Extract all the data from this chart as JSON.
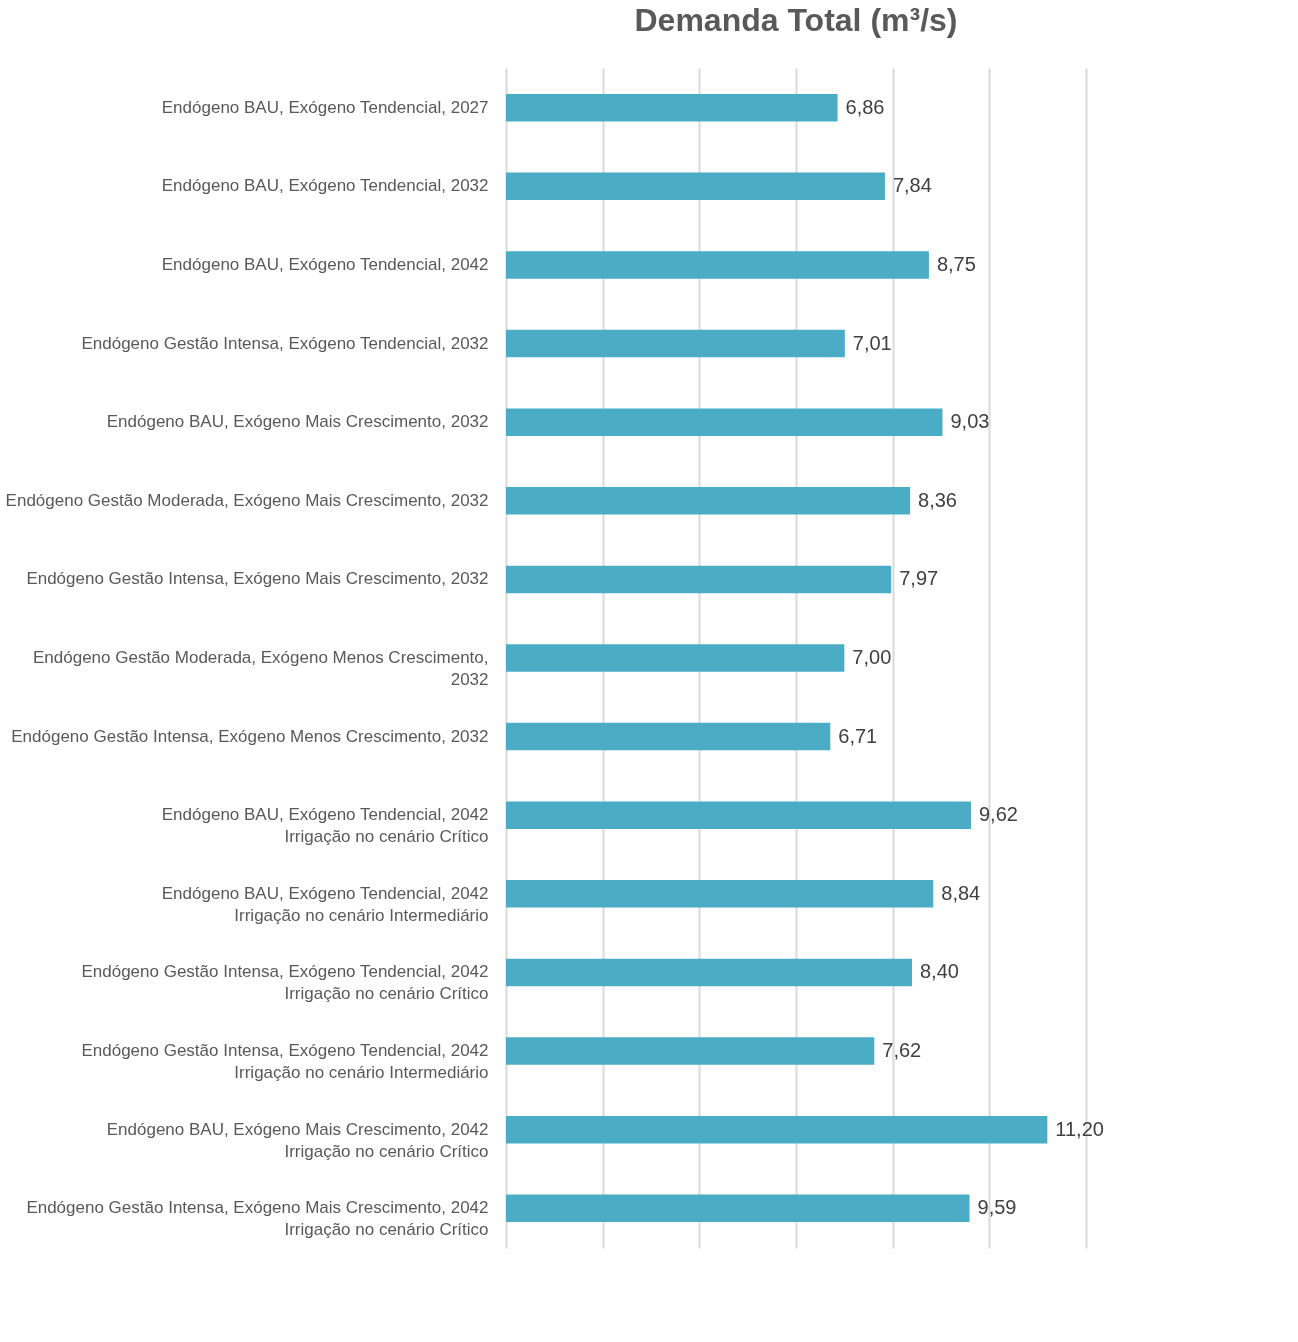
{
  "chart_data": {
    "type": "bar",
    "orientation": "horizontal",
    "title": "Demanda Total (m³/s)",
    "categories": [
      "Endógeno BAU, Exógeno Tendencial, 2027",
      "Endógeno BAU, Exógeno Tendencial, 2032",
      "Endógeno BAU, Exógeno Tendencial, 2042",
      "Endógeno Gestão Intensa, Exógeno Tendencial, 2032",
      "Endógeno BAU, Exógeno Mais Crescimento, 2032",
      "Endógeno Gestão Moderada, Exógeno Mais Crescimento, 2032",
      "Endógeno Gestão Intensa, Exógeno Mais Crescimento, 2032",
      "Endógeno Gestão Moderada, Exógeno Menos Crescimento,\n2032",
      "Endógeno Gestão Intensa, Exógeno Menos Crescimento, 2032",
      "Endógeno BAU, Exógeno Tendencial, 2042\nIrrigação no cenário Crítico",
      "Endógeno BAU, Exógeno Tendencial, 2042\nIrrigação no cenário Intermediário",
      "Endógeno Gestão Intensa, Exógeno Tendencial, 2042\nIrrigação no cenário Crítico",
      "Endógeno Gestão Intensa, Exógeno Tendencial, 2042\nIrrigação no cenário Intermediário",
      "Endógeno BAU, Exógeno Mais Crescimento, 2042\nIrrigação no cenário Crítico",
      "Endógeno Gestão Intensa, Exógeno Mais Crescimento, 2042\nIrrigação no cenário Crítico"
    ],
    "values": [
      6.86,
      7.84,
      8.75,
      7.01,
      9.03,
      8.36,
      7.97,
      7.0,
      6.71,
      9.62,
      8.84,
      8.4,
      7.62,
      11.2,
      9.59
    ],
    "value_labels": [
      "6,86",
      "7,84",
      "8,75",
      "7,01",
      "9,03",
      "8,36",
      "7,97",
      "7,00",
      "6,71",
      "9,62",
      "8,84",
      "8,40",
      "7,62",
      "11,20",
      "9,59"
    ],
    "color": "#4bacc6",
    "xlim": [
      0,
      12
    ],
    "xticks": [
      {
        "value": 0,
        "label": null
      },
      {
        "value": 2,
        "label": null
      },
      {
        "value": 4,
        "label": null
      },
      {
        "value": 6,
        "label": null
      },
      {
        "value": 8,
        "label": null
      },
      {
        "value": 10,
        "label": null
      },
      {
        "value": 12,
        "label": null
      }
    ],
    "grid": "x",
    "tick_labels": "y"
  }
}
